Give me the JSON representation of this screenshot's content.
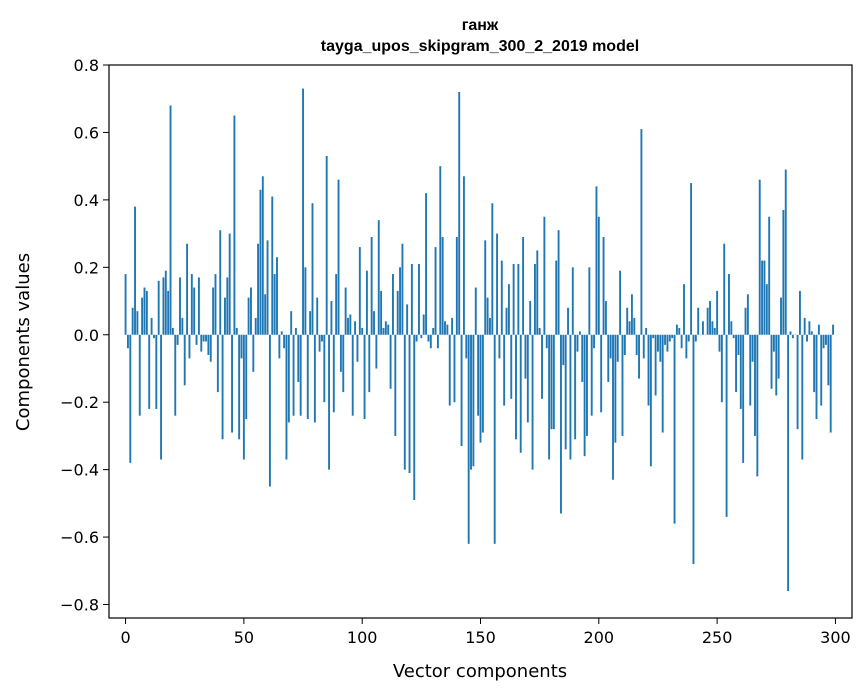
{
  "chart_data": {
    "type": "bar",
    "title_line1": "ганж",
    "title_line2": "tayga_upos_skipgram_300_2_2019 model",
    "xlabel": "Vector components",
    "ylabel": "Components values",
    "xlim": [
      -7,
      307
    ],
    "ylim": [
      -0.84,
      0.8
    ],
    "xticks": [
      0,
      50,
      100,
      150,
      200,
      250,
      300
    ],
    "xtick_labels": [
      "0",
      "50",
      "100",
      "150",
      "200",
      "250",
      "300"
    ],
    "yticks": [
      -0.8,
      -0.6,
      -0.4,
      -0.2,
      0.0,
      0.2,
      0.4,
      0.6,
      0.8
    ],
    "ytick_labels": [
      "−0.8",
      "−0.6",
      "−0.4",
      "−0.2",
      "0.0",
      "0.2",
      "0.4",
      "0.6",
      "0.8"
    ],
    "bar_color": "#1f77b4",
    "values": [
      0.18,
      -0.04,
      -0.38,
      0.08,
      0.38,
      0.07,
      -0.24,
      0.11,
      0.14,
      0.13,
      -0.22,
      0.05,
      -0.01,
      -0.22,
      0.16,
      -0.37,
      0.17,
      0.19,
      0.13,
      0.68,
      0.02,
      -0.24,
      -0.03,
      0.17,
      0.05,
      -0.15,
      0.27,
      -0.07,
      0.18,
      0.14,
      -0.03,
      0.17,
      -0.05,
      -0.02,
      -0.02,
      -0.06,
      -0.08,
      0.14,
      0.18,
      -0.17,
      0.31,
      -0.31,
      0.11,
      0.17,
      0.3,
      -0.29,
      0.65,
      0.02,
      -0.31,
      -0.07,
      -0.37,
      -0.25,
      0.11,
      0.14,
      -0.11,
      0.05,
      0.27,
      0.43,
      0.47,
      0.12,
      0.28,
      -0.45,
      0.41,
      0.18,
      0.23,
      -0.07,
      0.01,
      -0.04,
      -0.37,
      -0.26,
      0.07,
      -0.24,
      0.02,
      -0.14,
      -0.24,
      0.73,
      0.2,
      -0.25,
      0.07,
      0.39,
      -0.26,
      0.11,
      -0.05,
      -0.02,
      -0.2,
      0.53,
      -0.4,
      0.1,
      -0.23,
      0.18,
      0.46,
      -0.11,
      -0.17,
      0.14,
      0.05,
      0.06,
      -0.24,
      0.04,
      -0.08,
      0.26,
      0.02,
      -0.25,
      0.19,
      -0.17,
      0.29,
      0.07,
      -0.1,
      0.34,
      0.13,
      0.02,
      0.04,
      0.03,
      -0.16,
      0.18,
      -0.3,
      0.13,
      0.2,
      0.27,
      -0.4,
      0.09,
      -0.41,
      0.21,
      -0.49,
      -0.02,
      0.21,
      -0.01,
      0.06,
      0.42,
      -0.02,
      -0.04,
      0.02,
      0.26,
      -0.04,
      0.5,
      0.29,
      0.04,
      0.03,
      -0.21,
      0.05,
      -0.2,
      0.29,
      0.72,
      -0.33,
      0.47,
      -0.07,
      -0.62,
      -0.4,
      -0.39,
      0.14,
      -0.24,
      -0.32,
      -0.29,
      0.28,
      0.11,
      0.05,
      0.39,
      -0.62,
      0.3,
      -0.07,
      0.22,
      -0.21,
      0.08,
      0.15,
      -0.19,
      0.21,
      -0.31,
      0.21,
      -0.35,
      0.29,
      -0.13,
      -0.26,
      0.1,
      -0.4,
      0.21,
      0.25,
      0.02,
      -0.19,
      0.35,
      -0.04,
      -0.37,
      -0.28,
      -0.28,
      0.22,
      0.31,
      -0.53,
      -0.09,
      -0.34,
      0.08,
      -0.37,
      0.2,
      -0.31,
      -0.05,
      0.01,
      -0.14,
      -0.36,
      -0.3,
      0.2,
      -0.24,
      -0.04,
      0.44,
      0.35,
      -0.23,
      0.29,
      0.1,
      -0.14,
      -0.07,
      -0.43,
      -0.32,
      -0.08,
      0.19,
      -0.3,
      -0.06,
      0.08,
      0.04,
      0.12,
      0.05,
      -0.06,
      -0.13,
      0.61,
      -0.07,
      0.02,
      -0.21,
      -0.39,
      -0.01,
      -0.18,
      -0.05,
      -0.08,
      -0.29,
      -0.03,
      -0.05,
      -0.02,
      -0.01,
      -0.56,
      0.03,
      0.02,
      -0.04,
      0.15,
      -0.07,
      -0.02,
      0.45,
      -0.68,
      -0.02,
      0.08,
      0.0,
      0.04,
      0.0,
      0.08,
      0.1,
      0.04,
      0.02,
      0.13,
      -0.05,
      -0.2,
      0.27,
      -0.54,
      0.18,
      0.04,
      -0.01,
      -0.17,
      -0.06,
      -0.22,
      -0.38,
      0.08,
      0.12,
      -0.21,
      -0.08,
      -0.3,
      -0.42,
      0.46,
      0.22,
      0.22,
      0.15,
      0.35,
      -0.16,
      -0.05,
      -0.18,
      -0.13,
      0.11,
      0.37,
      0.49,
      -0.76,
      0.01,
      -0.01,
      0.0,
      -0.28,
      0.13,
      -0.37,
      0.05,
      -0.02,
      0.04,
      0.01,
      -0.17,
      -0.25,
      0.03,
      -0.21,
      -0.04,
      -0.03,
      -0.15,
      -0.29,
      0.03
    ]
  }
}
